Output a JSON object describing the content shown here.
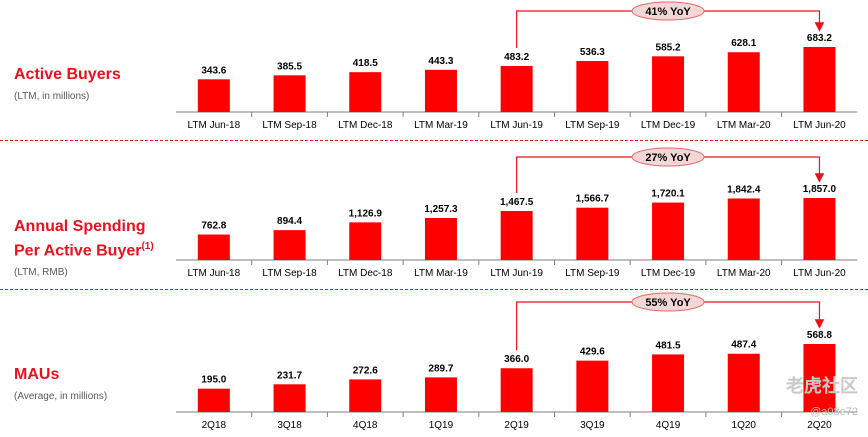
{
  "colors": {
    "bar": "#ff0000",
    "accent": "#e8111c",
    "axis": "#7f7f7f",
    "bubble_fill": "#f5d6d6",
    "bubble_stroke": "#e06b6b"
  },
  "panels": [
    {
      "title": "Active Buyers",
      "title_sup": "",
      "subtitle": "(LTM, in millions)",
      "yoy_label": "41% YoY"
    },
    {
      "title": "Annual Spending\nPer Active Buyer",
      "title_sup": "(1)",
      "subtitle": "(LTM, RMB)",
      "yoy_label": "27% YoY"
    },
    {
      "title": "MAUs",
      "title_sup": "",
      "subtitle": "(Average, in millions)",
      "yoy_label": "55% YoY"
    }
  ],
  "chart_data": [
    {
      "type": "bar",
      "categories": [
        "LTM Jun-18",
        "LTM Sep-18",
        "LTM Dec-18",
        "LTM Mar-19",
        "LTM Jun-19",
        "LTM Sep-19",
        "LTM Dec-19",
        "LTM Mar-20",
        "LTM Jun-20"
      ],
      "values": [
        343.6,
        385.5,
        418.5,
        443.3,
        483.2,
        536.3,
        585.2,
        628.1,
        683.2
      ],
      "labels": [
        "343.6",
        "385.5",
        "418.5",
        "443.3",
        "483.2",
        "536.3",
        "585.2",
        "628.1",
        "683.2"
      ],
      "title": "Active Buyers",
      "annotation": {
        "text": "41% YoY",
        "from_index": 4,
        "to_index": 8
      }
    },
    {
      "type": "bar",
      "categories": [
        "LTM Jun-18",
        "LTM Sep-18",
        "LTM Dec-18",
        "LTM Mar-19",
        "LTM Jun-19",
        "LTM Sep-19",
        "LTM Dec-19",
        "LTM Mar-20",
        "LTM Jun-20"
      ],
      "values": [
        762.8,
        894.4,
        1126.9,
        1257.3,
        1467.5,
        1566.7,
        1720.1,
        1842.4,
        1857.0
      ],
      "labels": [
        "762.8",
        "894.4",
        "1,126.9",
        "1,257.3",
        "1,467.5",
        "1,566.7",
        "1,720.1",
        "1,842.4",
        "1,857.0"
      ],
      "title": "Annual Spending Per Active Buyer",
      "annotation": {
        "text": "27% YoY",
        "from_index": 4,
        "to_index": 8
      }
    },
    {
      "type": "bar",
      "categories": [
        "2Q18",
        "3Q18",
        "4Q18",
        "1Q19",
        "2Q19",
        "3Q19",
        "4Q19",
        "1Q20",
        "2Q20"
      ],
      "values": [
        195.0,
        231.7,
        272.6,
        289.7,
        366.0,
        429.6,
        481.5,
        487.4,
        568.8
      ],
      "labels": [
        "195.0",
        "231.7",
        "272.6",
        "289.7",
        "366.0",
        "429.6",
        "481.5",
        "487.4",
        "568.8"
      ],
      "title": "MAUs",
      "annotation": {
        "text": "55% YoY",
        "from_index": 4,
        "to_index": 8
      }
    }
  ],
  "watermark": {
    "text": "老虎社区",
    "sub": "@a08e72"
  }
}
